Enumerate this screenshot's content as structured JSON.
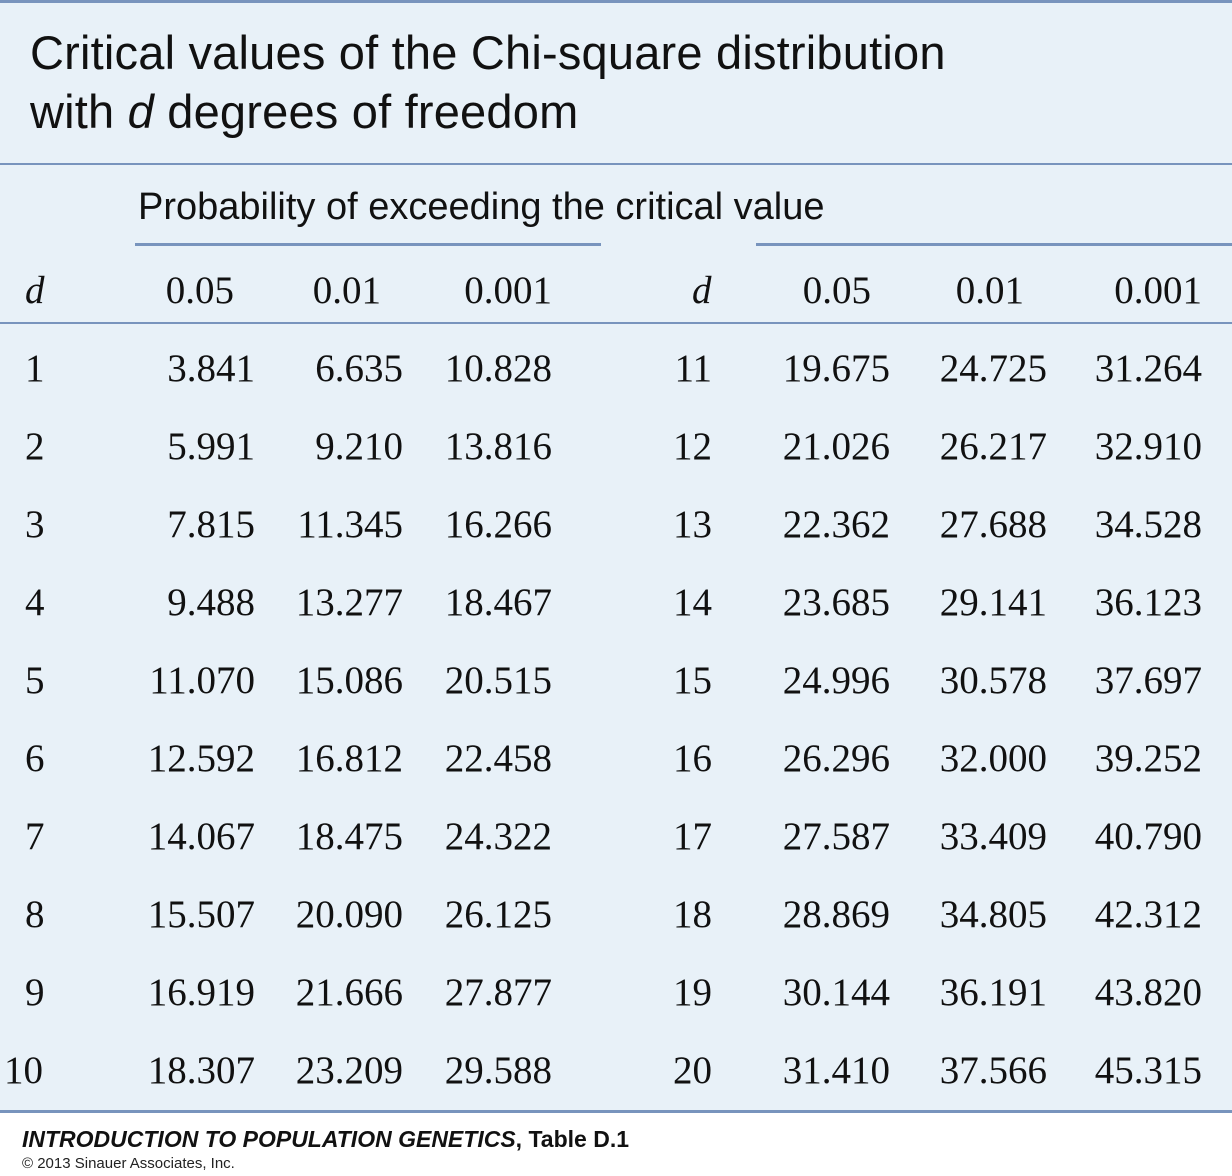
{
  "title": {
    "line1": "Critical values of the Chi-square distribution",
    "line2_pre": "with ",
    "line2_var": "d",
    "line2_post": " degrees of freedom"
  },
  "spanner": "Probability of exceeding the critical value",
  "headers": {
    "d": "d",
    "p1": "0.05",
    "p2": "0.01",
    "p3": "0.001"
  },
  "left_rows": [
    {
      "d": "1",
      "p05": "3.841",
      "p01": "6.635",
      "p001": "10.828"
    },
    {
      "d": "2",
      "p05": "5.991",
      "p01": "9.210",
      "p001": "13.816"
    },
    {
      "d": "3",
      "p05": "7.815",
      "p01": "11.345",
      "p001": "16.266"
    },
    {
      "d": "4",
      "p05": "9.488",
      "p01": "13.277",
      "p001": "18.467"
    },
    {
      "d": "5",
      "p05": "11.070",
      "p01": "15.086",
      "p001": "20.515"
    },
    {
      "d": "6",
      "p05": "12.592",
      "p01": "16.812",
      "p001": "22.458"
    },
    {
      "d": "7",
      "p05": "14.067",
      "p01": "18.475",
      "p001": "24.322"
    },
    {
      "d": "8",
      "p05": "15.507",
      "p01": "20.090",
      "p001": "26.125"
    },
    {
      "d": "9",
      "p05": "16.919",
      "p01": "21.666",
      "p001": "27.877"
    },
    {
      "d": "10",
      "p05": "18.307",
      "p01": "23.209",
      "p001": "29.588"
    }
  ],
  "right_rows": [
    {
      "d": "11",
      "p05": "19.675",
      "p01": "24.725",
      "p001": "31.264"
    },
    {
      "d": "12",
      "p05": "21.026",
      "p01": "26.217",
      "p001": "32.910"
    },
    {
      "d": "13",
      "p05": "22.362",
      "p01": "27.688",
      "p001": "34.528"
    },
    {
      "d": "14",
      "p05": "23.685",
      "p01": "29.141",
      "p001": "36.123"
    },
    {
      "d": "15",
      "p05": "24.996",
      "p01": "30.578",
      "p001": "37.697"
    },
    {
      "d": "16",
      "p05": "26.296",
      "p01": "32.000",
      "p001": "39.252"
    },
    {
      "d": "17",
      "p05": "27.587",
      "p01": "33.409",
      "p001": "40.790"
    },
    {
      "d": "18",
      "p05": "28.869",
      "p01": "34.805",
      "p001": "42.312"
    },
    {
      "d": "19",
      "p05": "30.144",
      "p01": "36.191",
      "p001": "43.820"
    },
    {
      "d": "20",
      "p05": "31.410",
      "p01": "37.566",
      "p001": "45.315"
    }
  ],
  "footer": {
    "book": "INTRODUCTION TO POPULATION GENETICS",
    "sep": ", ",
    "table": "Table D.1",
    "copyright": "© 2013 Sinauer Associates, Inc."
  },
  "colors": {
    "panel_background": "#e8f1f8",
    "rule": "#7894bd",
    "text": "#111111"
  }
}
